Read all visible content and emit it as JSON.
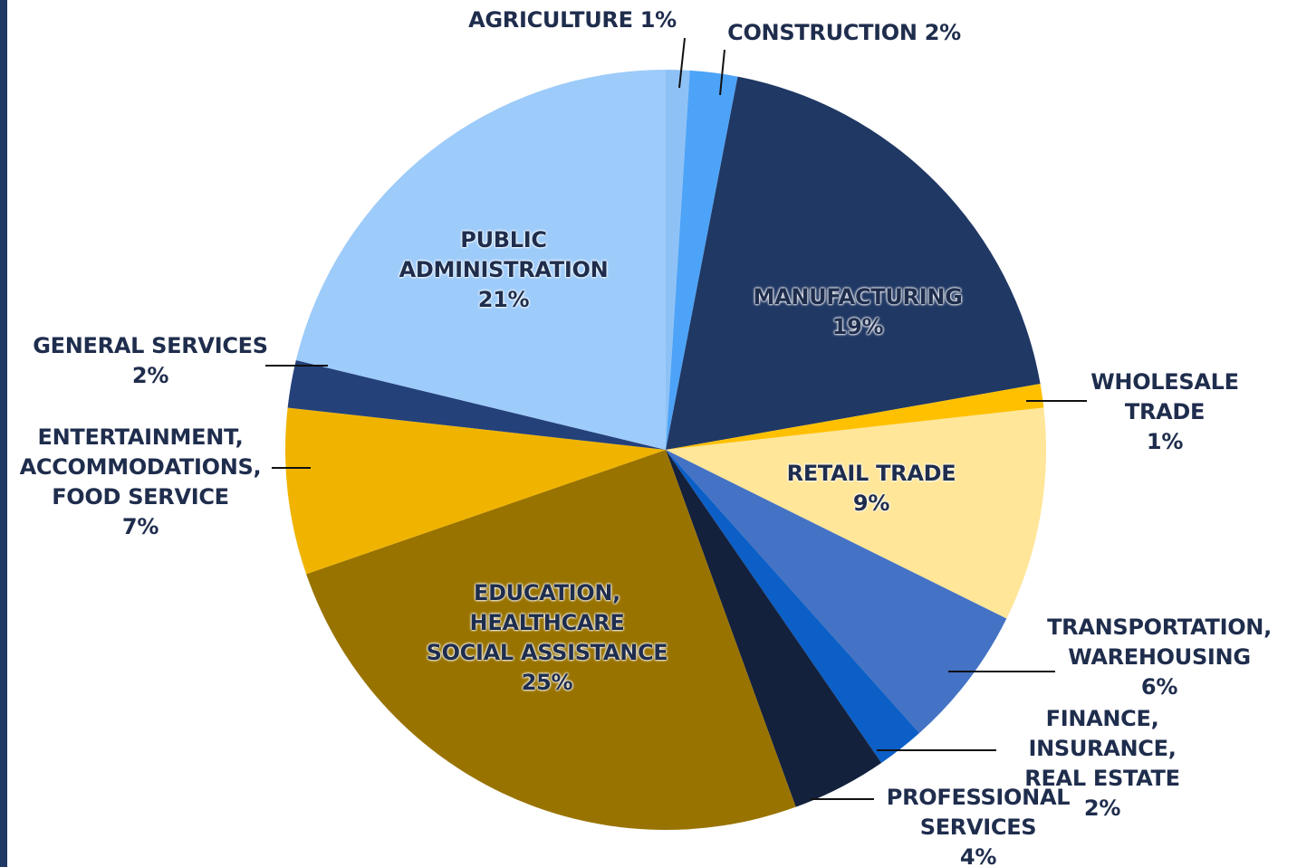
{
  "chart_data": {
    "type": "pie",
    "categories": [
      "AGRICULTURE",
      "CONSTRUCTION",
      "MANUFACTURING",
      "WHOLESALE\nTRADE",
      "RETAIL TRADE",
      "TRANSPORTATION,\nWAREHOUSING",
      "FINANCE, INSURANCE,\nREAL ESTATE",
      "PROFESSIONAL\nSERVICES",
      "EDUCATION,\nHEALTHCARE\nSOCIAL ASSISTANCE",
      "ENTERTAINMENT,\nACCOMMODATIONS,\nFOOD SERVICE",
      "GENERAL SERVICES",
      "PUBLIC\nADMINISTRATION"
    ],
    "values": [
      1,
      2,
      19,
      1,
      9,
      6,
      2,
      4,
      25,
      7,
      2,
      21
    ],
    "value_labels": [
      "1%",
      "2%",
      "19%",
      "1%",
      "9%",
      "6%",
      "2%",
      "4%",
      "25%",
      "7%",
      "2%",
      "21%"
    ],
    "colors": [
      "#8ec2f6",
      "#4da3f7",
      "#203864",
      "#ffc000",
      "#ffe699",
      "#4472c4",
      "#0b5fc6",
      "#14213d",
      "#997300",
      "#f0b400",
      "#24417a",
      "#9dcbfa"
    ]
  }
}
